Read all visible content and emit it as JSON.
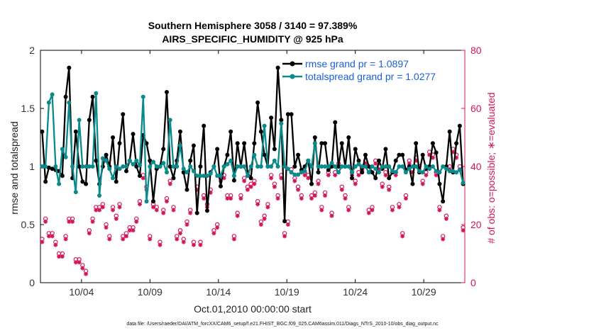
{
  "chart_data": {
    "type": "line",
    "title_line1": "Southern Hemisphere 3058 / 3140 = 97.389%",
    "title_line2": "AIRS_SPECIFIC_HUMIDITY @ 925 hPa",
    "xlabel": "Oct.01,2010 00:00:00 start",
    "ylabel_left": "rmse and totalspread",
    "ylabel_right": "# of obs: o=possible; ∗=evaluated",
    "footnote": "data file: /Users/raeder/DAI/ATM_forcXX/CAM6_setup/f.e21.FHIST_BGC.f09_025.CAM6assim.011/Diags_NTrS_2010-10/obs_diag_output.nc",
    "xlim": [
      1.0,
      32.0
    ],
    "ylim_left": [
      0,
      2
    ],
    "ylim_right": [
      0,
      80
    ],
    "yticks_left": [
      "0",
      "0.5",
      "1",
      "1.5",
      "2"
    ],
    "yticks_right": [
      "0",
      "20",
      "40",
      "60",
      "80"
    ],
    "xticks": [
      {
        "value": 4,
        "label": "10/04"
      },
      {
        "value": 9,
        "label": "10/09"
      },
      {
        "value": 14,
        "label": "10/14"
      },
      {
        "value": 19,
        "label": "10/19"
      },
      {
        "value": 24,
        "label": "10/24"
      },
      {
        "value": 29,
        "label": "10/29"
      }
    ],
    "colors": {
      "rmse": "#000000",
      "spread": "#0a8a8a",
      "obs": "#d4145a",
      "legend_text": "#1b5fd6"
    },
    "series": [
      {
        "name": "rmse grand pr = 1.0897",
        "values": [
          1.3,
          0.87,
          0.99,
          0.98,
          0.97,
          0.96,
          0.92,
          1.6,
          1.85,
          0.9,
          1.3,
          1.0,
          0.87,
          0.85,
          1.4,
          1.6,
          1.05,
          0.85,
          1.0,
          1.1,
          1.0,
          1.25,
          0.87,
          1.2,
          1.45,
          0.96,
          1.05,
          1.28,
          1.0,
          0.92,
          1.27,
          1.2,
          1.05,
          0.7,
          0.98,
          1.0,
          1.15,
          1.64,
          1.0,
          0.9,
          1.05,
          1.3,
          0.95,
          0.8,
          1.05,
          1.18,
          0.6,
          1.0,
          1.35,
          0.62,
          0.95,
          1.0,
          1.15,
          0.83,
          1.0,
          1.1,
          1.3,
          0.88,
          1.2,
          1.0,
          1.2,
          0.95,
          0.9,
          1.2,
          1.55,
          1.3,
          1.1,
          1.0,
          1.42,
          1.15,
          1.85,
          1.4,
          0.53,
          1.45,
          1.45,
          1.0,
          1.1,
          0.97,
          1.0,
          1.05,
          0.85,
          1.25,
          0.95,
          1.2,
          1.2,
          0.97,
          1.0,
          1.38,
          1.0,
          1.2,
          1.0,
          1.25,
          0.9,
          1.15,
          1.05,
          0.95,
          1.1,
          1.0,
          0.95,
          0.9,
          1.05,
          0.98,
          1.15,
          0.9,
          0.95,
          1.05,
          1.1,
          1.1,
          0.97,
          1.0,
          0.85,
          1.2,
          0.95,
          1.1,
          0.98,
          1.0,
          1.2,
          1.12,
          0.85,
          0.7,
          1.0,
          1.3,
          0.95,
          1.2,
          1.35,
          0.85
        ]
      },
      {
        "name": "totalspread grand pr = 1.0277",
        "values": [
          1.0,
          1.0,
          1.55,
          1.62,
          1.0,
          0.85,
          1.15,
          1.08,
          1.55,
          1.0,
          0.78,
          1.4,
          1.0,
          1.0,
          1.0,
          1.0,
          1.63,
          0.75,
          1.07,
          1.05,
          0.98,
          0.9,
          1.0,
          0.98,
          1.0,
          1.0,
          1.05,
          1.02,
          1.05,
          1.01,
          1.6,
          0.7,
          1.0,
          1.04,
          1.0,
          1.0,
          1.03,
          0.95,
          1.4,
          1.0,
          1.0,
          1.18,
          0.98,
          0.95,
          1.0,
          0.96,
          0.92,
          0.92,
          0.92,
          0.92,
          0.94,
          1.0,
          0.92,
          0.92,
          1.0,
          1.02,
          1.05,
          0.92,
          1.0,
          1.0,
          1.0,
          0.92,
          1.0,
          1.1,
          1.0,
          1.0,
          1.35,
          1.0,
          1.0,
          1.05,
          1.0,
          1.37,
          1.0,
          0.98,
          0.95,
          0.93,
          0.93,
          0.95,
          0.96,
          1.05,
          1.0,
          1.2,
          1.0,
          1.0,
          1.0,
          1.0,
          1.03,
          1.0,
          0.95,
          1.0,
          1.0,
          1.0,
          0.95,
          1.0,
          1.02,
          1.0,
          1.0,
          0.95,
          1.0,
          0.98,
          0.95,
          1.0,
          1.0,
          1.0,
          0.96,
          0.95,
          1.0,
          1.0,
          0.95,
          0.98,
          1.0,
          1.0,
          0.96,
          0.95,
          1.0,
          0.98,
          1.0,
          0.96,
          0.95,
          1.0,
          0.98,
          0.96,
          0.96,
          0.95,
          0.97,
          0.86
        ]
      },
      {
        "name": "possible",
        "values": [
          15,
          22,
          17,
          17,
          14,
          10,
          10,
          16,
          22,
          22,
          8,
          8,
          6,
          4,
          18,
          22,
          26,
          26,
          27,
          20,
          16,
          26,
          23,
          27,
          16,
          17,
          19,
          19,
          22,
          28,
          37,
          33,
          16,
          27,
          26,
          14,
          25,
          29,
          35,
          26,
          16,
          18,
          15,
          21,
          25,
          14,
          33,
          14,
          30,
          27,
          32,
          18,
          20,
          36,
          37,
          30,
          30,
          16,
          24,
          30,
          36,
          33,
          34,
          35,
          28,
          21,
          23,
          27,
          37,
          34,
          30,
          37,
          17,
          21,
          39,
          36,
          33,
          30,
          38,
          37,
          30,
          31,
          35,
          26,
          31,
          38,
          24,
          38,
          41,
          33,
          30,
          26,
          38,
          35,
          38,
          39,
          42,
          25,
          26,
          42,
          40,
          34,
          38,
          33,
          26,
          38,
          27,
          17,
          30,
          42,
          39,
          43,
          40,
          35,
          38,
          45,
          44,
          38,
          26,
          16,
          23,
          40,
          46,
          44,
          40,
          19
        ]
      },
      {
        "name": "evaluated",
        "values": [
          14,
          21,
          16,
          16,
          13,
          9,
          9,
          15,
          21,
          21,
          7,
          7,
          5,
          3,
          17,
          21,
          25,
          25,
          26,
          19,
          15,
          25,
          22,
          26,
          15,
          16,
          18,
          18,
          21,
          27,
          36,
          32,
          15,
          26,
          25,
          13,
          24,
          28,
          34,
          25,
          15,
          17,
          14,
          20,
          24,
          13,
          32,
          13,
          29,
          26,
          31,
          17,
          19,
          35,
          36,
          29,
          29,
          15,
          23,
          29,
          35,
          32,
          33,
          34,
          27,
          20,
          22,
          26,
          36,
          33,
          29,
          36,
          16,
          20,
          38,
          35,
          32,
          29,
          37,
          36,
          29,
          30,
          34,
          25,
          30,
          37,
          23,
          37,
          40,
          32,
          29,
          25,
          37,
          34,
          37,
          38,
          41,
          24,
          25,
          41,
          39,
          33,
          37,
          32,
          25,
          37,
          26,
          16,
          29,
          41,
          38,
          42,
          39,
          34,
          37,
          44,
          43,
          37,
          25,
          15,
          22,
          39,
          45,
          43,
          39,
          18
        ]
      }
    ]
  }
}
